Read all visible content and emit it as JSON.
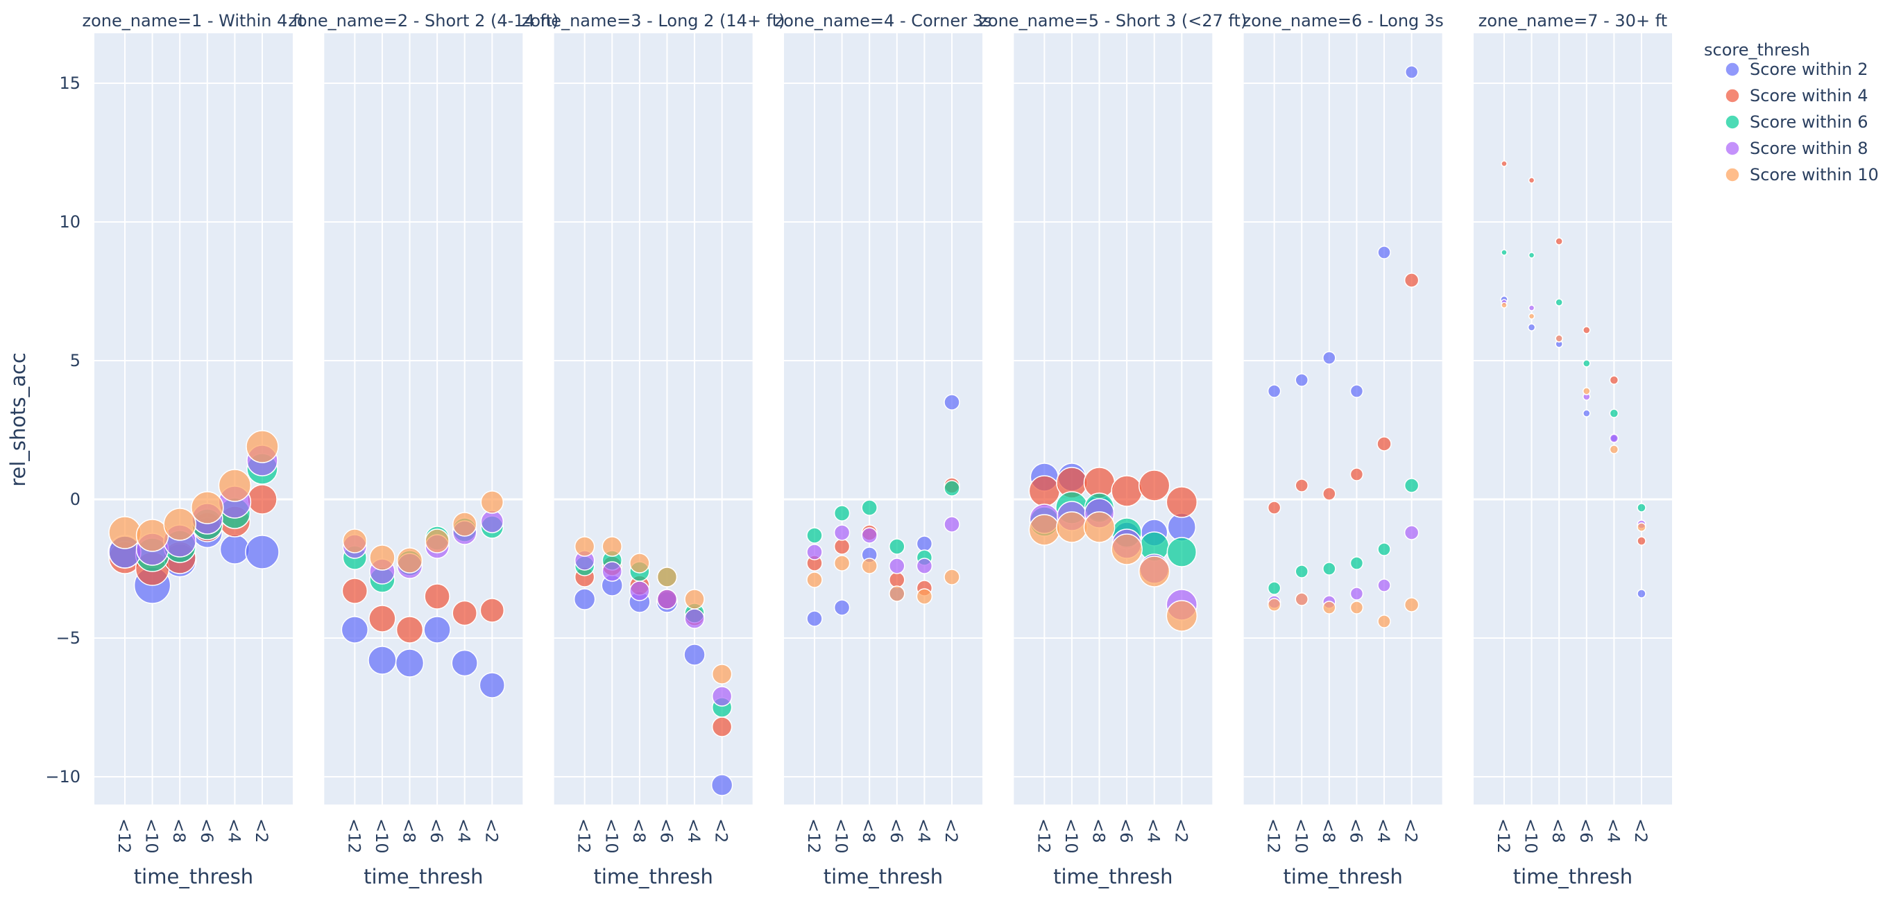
{
  "chart_data": {
    "type": "scatter",
    "facets": [
      "zone_name=1 - Within 4 ft",
      "zone_name=2 - Short 2 (4-14 ft)",
      "zone_name=3 - Long 2 (14+ ft)",
      "zone_name=4 - Corner 3s",
      "zone_name=5 - Short 3 (<27 ft)",
      "zone_name=6 - Long 3s",
      "zone_name=7 - 30+ ft"
    ],
    "categories": [
      "<12",
      "<10",
      "<8",
      "<6",
      "<4",
      "<2"
    ],
    "xlabel": "time_thresh",
    "ylabel": "rel_shots_acc",
    "ylim": [
      -11,
      16.8
    ],
    "yticks": [
      -10,
      -5,
      0,
      5,
      10,
      15
    ],
    "ytick_labels": [
      "−10",
      "−5",
      "0",
      "5",
      "10",
      "15"
    ],
    "legend_title": "score_thresh",
    "legend_position": "top-right",
    "grid": true,
    "series": [
      {
        "name": "Score within 2",
        "color": "#636efa",
        "values": [
          [
            -1.9,
            -3.1,
            -2.2,
            -1.2,
            -1.8,
            -1.9
          ],
          [
            -4.7,
            -5.8,
            -5.9,
            -4.7,
            -5.9,
            -6.7
          ],
          [
            -3.6,
            -3.1,
            -3.7,
            -3.7,
            -5.6,
            -10.3
          ],
          [
            -4.3,
            -3.9,
            -2.0,
            -3.4,
            -1.6,
            3.5
          ],
          [
            0.8,
            0.8,
            -0.3,
            -1.3,
            -1.2,
            -1.0
          ],
          [
            3.9,
            4.3,
            5.1,
            3.9,
            8.9,
            15.4
          ],
          [
            7.2,
            6.2,
            5.6,
            3.1,
            2.2,
            -3.4
          ]
        ],
        "sizes": [
          [
            48,
            52,
            47,
            43,
            42,
            48
          ],
          [
            38,
            40,
            40,
            38,
            37,
            36
          ],
          [
            30,
            30,
            30,
            30,
            30,
            30
          ],
          [
            22,
            22,
            22,
            22,
            22,
            22
          ],
          [
            40,
            40,
            38,
            38,
            38,
            40
          ],
          [
            18,
            18,
            18,
            18,
            18,
            18
          ],
          [
            10,
            10,
            10,
            10,
            10,
            12
          ]
        ]
      },
      {
        "name": "Score within 4",
        "color": "#ef553b",
        "values": [
          [
            -2.1,
            -2.5,
            -2.1,
            -1.0,
            -0.8,
            0.0
          ],
          [
            -3.3,
            -4.3,
            -4.7,
            -3.5,
            -4.1,
            -4.0
          ],
          [
            -2.8,
            -2.4,
            -3.1,
            -3.6,
            -4.2,
            -8.2
          ],
          [
            -2.3,
            -1.7,
            -1.2,
            -2.9,
            -3.2,
            0.5
          ],
          [
            0.3,
            0.6,
            0.6,
            0.3,
            0.5,
            -0.1
          ],
          [
            -0.3,
            0.5,
            0.2,
            0.9,
            2.0,
            7.9
          ],
          [
            12.1,
            11.5,
            9.3,
            6.1,
            4.3,
            -1.5
          ]
        ],
        "sizes": [
          [
            46,
            48,
            46,
            42,
            44,
            42
          ],
          [
            36,
            38,
            38,
            36,
            35,
            34
          ],
          [
            28,
            28,
            28,
            28,
            28,
            28
          ],
          [
            22,
            22,
            22,
            22,
            22,
            22
          ],
          [
            44,
            44,
            44,
            44,
            44,
            44
          ],
          [
            18,
            18,
            18,
            18,
            20,
            20
          ],
          [
            8,
            8,
            10,
            10,
            12,
            12
          ]
        ]
      },
      {
        "name": "Score within 6",
        "color": "#00cc96",
        "values": [
          [
            -1.9,
            -2.0,
            -1.7,
            -0.9,
            -0.5,
            1.1
          ],
          [
            -2.1,
            -2.9,
            -2.3,
            -1.4,
            -1.1,
            -1.0
          ],
          [
            -2.4,
            -2.2,
            -2.6,
            -2.8,
            -4.1,
            -7.5
          ],
          [
            -1.3,
            -0.5,
            -0.3,
            -1.7,
            -2.1,
            0.4
          ],
          [
            -0.8,
            -0.3,
            -0.3,
            -1.2,
            -1.7,
            -1.9
          ],
          [
            -3.2,
            -2.6,
            -2.5,
            -2.3,
            -1.8,
            0.5
          ],
          [
            8.9,
            8.8,
            7.1,
            4.9,
            3.1,
            -0.3
          ]
        ],
        "sizes": [
          [
            46,
            48,
            46,
            44,
            44,
            44
          ],
          [
            34,
            36,
            36,
            34,
            34,
            32
          ],
          [
            28,
            28,
            28,
            28,
            28,
            28
          ],
          [
            22,
            22,
            22,
            22,
            22,
            22
          ],
          [
            42,
            46,
            42,
            42,
            42,
            42
          ],
          [
            18,
            18,
            18,
            18,
            18,
            20
          ],
          [
            8,
            8,
            10,
            10,
            12,
            12
          ]
        ]
      },
      {
        "name": "Score within 8",
        "color": "#ab63fa",
        "values": [
          [
            -1.9,
            -1.8,
            -1.5,
            -0.7,
            -0.1,
            1.4
          ],
          [
            -1.7,
            -2.6,
            -2.4,
            -1.7,
            -1.2,
            -0.8
          ],
          [
            -2.2,
            -2.6,
            -3.3,
            -3.6,
            -4.3,
            -7.1
          ],
          [
            -1.9,
            -1.2,
            -1.3,
            -2.4,
            -2.4,
            -0.9
          ],
          [
            -0.7,
            -0.6,
            -0.5,
            -1.6,
            -2.5,
            -3.8
          ],
          [
            -3.7,
            -3.6,
            -3.7,
            -3.4,
            -3.1,
            -1.2
          ],
          [
            7.1,
            6.9,
            5.8,
            3.7,
            2.2,
            -0.9
          ]
        ],
        "sizes": [
          [
            46,
            46,
            46,
            44,
            46,
            44
          ],
          [
            34,
            36,
            36,
            34,
            34,
            32
          ],
          [
            28,
            28,
            28,
            28,
            28,
            28
          ],
          [
            22,
            22,
            22,
            22,
            22,
            22
          ],
          [
            42,
            42,
            42,
            42,
            42,
            44
          ],
          [
            18,
            18,
            18,
            18,
            18,
            20
          ],
          [
            8,
            8,
            10,
            10,
            12,
            12
          ]
        ]
      },
      {
        "name": "Score within 10",
        "color": "#ffa15a",
        "values": [
          [
            -1.2,
            -1.3,
            -0.9,
            -0.3,
            0.5,
            1.9
          ],
          [
            -1.5,
            -2.1,
            -2.2,
            -1.5,
            -0.9,
            -0.1
          ],
          [
            -1.7,
            -1.7,
            -2.3,
            -2.8,
            -3.6,
            -6.3
          ],
          [
            -2.9,
            -2.3,
            -2.4,
            -3.4,
            -3.5,
            -2.8
          ],
          [
            -1.1,
            -1.0,
            -1.0,
            -1.8,
            -2.6,
            -4.2
          ],
          [
            -3.8,
            -3.6,
            -3.9,
            -3.9,
            -4.4,
            -3.8
          ],
          [
            7.0,
            6.6,
            5.8,
            3.9,
            1.8,
            -1.0
          ]
        ],
        "sizes": [
          [
            46,
            46,
            46,
            46,
            46,
            46
          ],
          [
            34,
            36,
            36,
            34,
            34,
            32
          ],
          [
            28,
            28,
            28,
            28,
            28,
            28
          ],
          [
            22,
            22,
            22,
            22,
            22,
            22
          ],
          [
            44,
            44,
            44,
            44,
            44,
            44
          ],
          [
            18,
            18,
            18,
            18,
            18,
            20
          ],
          [
            8,
            8,
            10,
            10,
            12,
            12
          ]
        ]
      }
    ]
  }
}
